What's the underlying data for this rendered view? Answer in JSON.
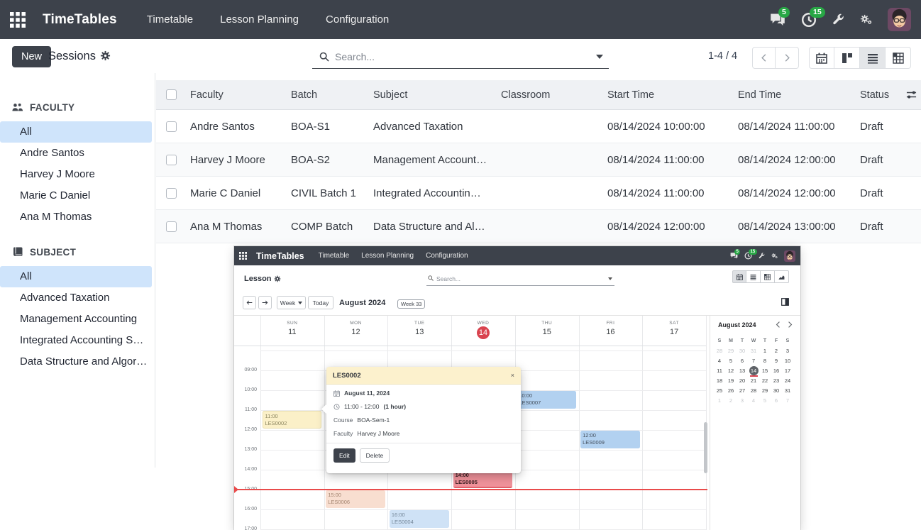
{
  "navbar": {
    "brand": "TimeTables",
    "menu": [
      "Timetable",
      "Lesson Planning",
      "Configuration"
    ],
    "messages_badge": "5",
    "activities_badge": "15"
  },
  "control": {
    "new_label": "New",
    "title": "Sessions",
    "search_placeholder": "Search...",
    "pager": "1-4 / 4"
  },
  "sidebar": {
    "sections": [
      {
        "title": "FACULTY",
        "icon": "users-icon",
        "active": 0,
        "items": [
          "All",
          "Andre Santos",
          "Harvey J Moore",
          "Marie C Daniel",
          "Ana M Thomas"
        ]
      },
      {
        "title": "SUBJECT",
        "icon": "book-icon",
        "active": 0,
        "items": [
          "All",
          "Advanced Taxation",
          "Management Accounting",
          "Integrated Accounting S…",
          "Data Structure and Algor…"
        ]
      }
    ]
  },
  "table": {
    "columns": [
      "Faculty",
      "Batch",
      "Subject",
      "Classroom",
      "Start Time",
      "End Time",
      "Status"
    ],
    "rows": [
      [
        "Andre Santos",
        "BOA-S1",
        "Advanced Taxation",
        "",
        "08/14/2024 10:00:00",
        "08/14/2024 11:00:00",
        "Draft"
      ],
      [
        "Harvey J Moore",
        "BOA-S2",
        "Management Account…",
        "",
        "08/14/2024 11:00:00",
        "08/14/2024 12:00:00",
        "Draft"
      ],
      [
        "Marie C Daniel",
        "CIVIL Batch 1",
        "Integrated Accountin…",
        "",
        "08/14/2024 11:00:00",
        "08/14/2024 12:00:00",
        "Draft"
      ],
      [
        "Ana M Thomas",
        "COMP Batch",
        "Data Structure and Al…",
        "",
        "08/14/2024 12:00:00",
        "08/14/2024 13:00:00",
        "Draft"
      ]
    ]
  },
  "embed": {
    "navbar": {
      "brand": "TimeTables",
      "menu": [
        "Timetable",
        "Lesson Planning",
        "Configuration"
      ],
      "messages_badge": "5",
      "activities_badge": "15"
    },
    "control": {
      "title": "Lesson",
      "search_placeholder": "Search..."
    },
    "toolbar": {
      "scale": "Week",
      "today": "Today",
      "title": "August 2024",
      "week_badge": "Week 33"
    },
    "calendar": {
      "days": [
        {
          "name": "SUN",
          "num": "11"
        },
        {
          "name": "MON",
          "num": "12"
        },
        {
          "name": "TUE",
          "num": "13"
        },
        {
          "name": "WED",
          "num": "14",
          "today": true
        },
        {
          "name": "THU",
          "num": "15"
        },
        {
          "name": "FRI",
          "num": "16"
        },
        {
          "name": "SAT",
          "num": "17"
        }
      ],
      "hours": [
        "09:00",
        "10:00",
        "11:00",
        "12:00",
        "13:00",
        "14:00",
        "15:00",
        "16:00",
        "17:00"
      ],
      "events": [
        {
          "id": "LES0002",
          "time": "11:00",
          "day": 0,
          "start": 11,
          "dur": 1,
          "color": "yellow"
        },
        {
          "id": "LES0006",
          "time": "15:00",
          "day": 1,
          "start": 15,
          "dur": 1,
          "color": "peach"
        },
        {
          "id": "LES0004",
          "time": "16:00",
          "day": 2,
          "start": 16,
          "dur": 1,
          "color": "blue-light"
        },
        {
          "id": "LES0005",
          "time": "14:00",
          "day": 3,
          "start": 14,
          "dur": 1,
          "color": "red"
        },
        {
          "id": "LES0007",
          "time": "10:00",
          "day": 4,
          "start": 10,
          "dur": 1,
          "color": "blue"
        },
        {
          "id": "LES0009",
          "time": "12:00",
          "day": 5,
          "start": 12,
          "dur": 1,
          "color": "blue"
        }
      ]
    },
    "popover": {
      "title": "LES0002",
      "date": "August 11, 2024",
      "time": "11:00 - 12:00",
      "duration": "(1 hour)",
      "course_label": "Course",
      "course": "BOA-Sem-1",
      "faculty_label": "Faculty",
      "faculty": "Harvey J Moore",
      "edit_label": "Edit",
      "delete_label": "Delete",
      "close_label": "×"
    },
    "minical": {
      "title": "August 2024",
      "weekdays": [
        "S",
        "M",
        "T",
        "W",
        "T",
        "F",
        "S"
      ],
      "weeks": [
        [
          {
            "t": "28",
            "m": 1
          },
          {
            "t": "29",
            "m": 1
          },
          {
            "t": "30",
            "m": 1
          },
          {
            "t": "31",
            "m": 1
          },
          {
            "t": "1"
          },
          {
            "t": "2"
          },
          {
            "t": "3"
          }
        ],
        [
          {
            "t": "4"
          },
          {
            "t": "5"
          },
          {
            "t": "6"
          },
          {
            "t": "7"
          },
          {
            "t": "8"
          },
          {
            "t": "9"
          },
          {
            "t": "10"
          }
        ],
        [
          {
            "t": "11"
          },
          {
            "t": "12"
          },
          {
            "t": "13"
          },
          {
            "t": "14",
            "today": 1
          },
          {
            "t": "15"
          },
          {
            "t": "16"
          },
          {
            "t": "17"
          }
        ],
        [
          {
            "t": "18"
          },
          {
            "t": "19"
          },
          {
            "t": "20"
          },
          {
            "t": "21"
          },
          {
            "t": "22"
          },
          {
            "t": "23"
          },
          {
            "t": "24"
          }
        ],
        [
          {
            "t": "25"
          },
          {
            "t": "26"
          },
          {
            "t": "27"
          },
          {
            "t": "28"
          },
          {
            "t": "29"
          },
          {
            "t": "30"
          },
          {
            "t": "31"
          }
        ],
        [
          {
            "t": "1",
            "m": 1
          },
          {
            "t": "2",
            "m": 1
          },
          {
            "t": "3",
            "m": 1
          },
          {
            "t": "4",
            "m": 1
          },
          {
            "t": "5",
            "m": 1
          },
          {
            "t": "6",
            "m": 1
          },
          {
            "t": "7",
            "m": 1
          }
        ]
      ]
    },
    "colors": {
      "accent_red": "#d9434f",
      "event_blue": "#b2d1f0",
      "event_yellow": "#fbf0c8",
      "badge_green": "#28a745"
    }
  }
}
